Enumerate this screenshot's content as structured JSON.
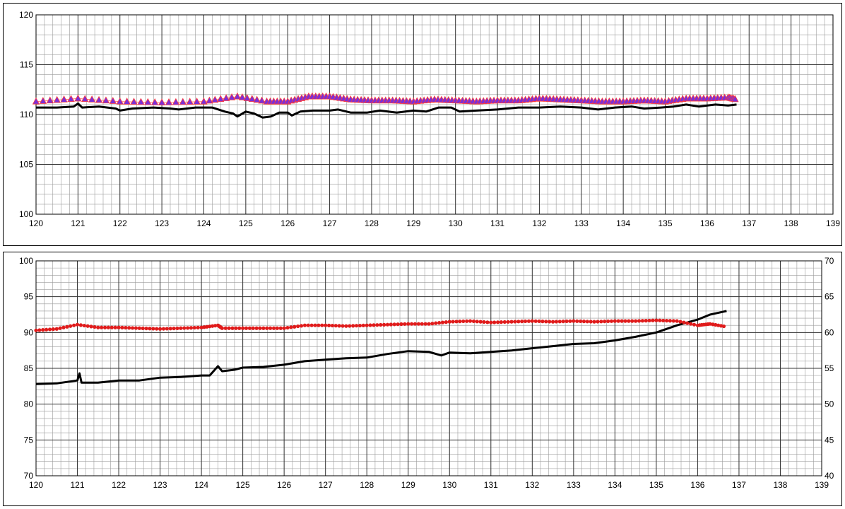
{
  "chart_data": [
    {
      "type": "line",
      "title": "",
      "xlabel": "",
      "ylabel": "",
      "xlim": [
        120,
        139
      ],
      "ylim": [
        100,
        120
      ],
      "xticks": [
        "120",
        "121",
        "122",
        "123",
        "124",
        "125",
        "126",
        "127",
        "128",
        "129",
        "130",
        "131",
        "132",
        "133",
        "134",
        "135",
        "136",
        "137",
        "138",
        "139"
      ],
      "yticks": [
        "100",
        "105",
        "110",
        "115",
        "120"
      ],
      "grid": true,
      "legend": "none",
      "colors": {
        "series_line": "#000000",
        "triangle_fill": "#7b2fd6",
        "triangle_edge": "#ff3b3b"
      },
      "series": [
        {
          "style": "line",
          "color": "#000000",
          "points": [
            [
              120.0,
              110.7
            ],
            [
              120.5,
              110.7
            ],
            [
              120.9,
              110.8
            ],
            [
              121.0,
              111.1
            ],
            [
              121.1,
              110.7
            ],
            [
              121.5,
              110.8
            ],
            [
              121.9,
              110.6
            ],
            [
              122.0,
              110.4
            ],
            [
              122.3,
              110.6
            ],
            [
              122.8,
              110.7
            ],
            [
              123.2,
              110.6
            ],
            [
              123.4,
              110.5
            ],
            [
              123.8,
              110.7
            ],
            [
              124.2,
              110.7
            ],
            [
              124.5,
              110.3
            ],
            [
              124.7,
              110.1
            ],
            [
              124.8,
              109.8
            ],
            [
              125.0,
              110.3
            ],
            [
              125.2,
              110.1
            ],
            [
              125.4,
              109.7
            ],
            [
              125.6,
              109.8
            ],
            [
              125.8,
              110.2
            ],
            [
              126.0,
              110.2
            ],
            [
              126.1,
              109.9
            ],
            [
              126.3,
              110.3
            ],
            [
              126.6,
              110.4
            ],
            [
              127.0,
              110.4
            ],
            [
              127.2,
              110.5
            ],
            [
              127.5,
              110.2
            ],
            [
              127.9,
              110.2
            ],
            [
              128.2,
              110.4
            ],
            [
              128.6,
              110.2
            ],
            [
              129.0,
              110.4
            ],
            [
              129.3,
              110.3
            ],
            [
              129.6,
              110.7
            ],
            [
              129.9,
              110.7
            ],
            [
              130.1,
              110.3
            ],
            [
              130.5,
              110.4
            ],
            [
              131.0,
              110.5
            ],
            [
              131.5,
              110.7
            ],
            [
              132.0,
              110.7
            ],
            [
              132.5,
              110.8
            ],
            [
              133.0,
              110.7
            ],
            [
              133.4,
              110.5
            ],
            [
              133.8,
              110.7
            ],
            [
              134.2,
              110.8
            ],
            [
              134.5,
              110.6
            ],
            [
              134.9,
              110.7
            ],
            [
              135.2,
              110.8
            ],
            [
              135.5,
              111.0
            ],
            [
              135.8,
              110.8
            ],
            [
              136.0,
              110.9
            ],
            [
              136.2,
              111.0
            ],
            [
              136.5,
              110.9
            ],
            [
              136.7,
              111.0
            ]
          ]
        },
        {
          "style": "triangle",
          "color": "#7b2fd6",
          "points": [
            [
              120.0,
              111.3
            ],
            [
              121.0,
              111.6
            ],
            [
              122.0,
              111.3
            ],
            [
              123.0,
              111.2
            ],
            [
              124.0,
              111.3
            ],
            [
              124.8,
              111.8
            ],
            [
              125.5,
              111.3
            ],
            [
              126.0,
              111.3
            ],
            [
              126.5,
              111.8
            ],
            [
              127.0,
              111.8
            ],
            [
              127.5,
              111.5
            ],
            [
              128.0,
              111.4
            ],
            [
              128.5,
              111.4
            ],
            [
              129.0,
              111.3
            ],
            [
              129.5,
              111.5
            ],
            [
              130.0,
              111.4
            ],
            [
              130.5,
              111.3
            ],
            [
              131.0,
              111.4
            ],
            [
              131.5,
              111.4
            ],
            [
              132.0,
              111.6
            ],
            [
              132.5,
              111.5
            ],
            [
              133.0,
              111.4
            ],
            [
              133.5,
              111.3
            ],
            [
              134.0,
              111.3
            ],
            [
              134.5,
              111.4
            ],
            [
              135.0,
              111.3
            ],
            [
              135.5,
              111.6
            ],
            [
              136.0,
              111.6
            ],
            [
              136.5,
              111.7
            ],
            [
              136.7,
              111.5
            ]
          ]
        }
      ]
    },
    {
      "type": "line",
      "title": "",
      "xlabel": "",
      "ylabel": "",
      "xlim": [
        120,
        139
      ],
      "ylim": [
        70,
        100
      ],
      "y2lim": [
        40,
        70
      ],
      "xticks": [
        "120",
        "121",
        "122",
        "123",
        "124",
        "125",
        "126",
        "127",
        "128",
        "129",
        "130",
        "131",
        "132",
        "133",
        "134",
        "135",
        "136",
        "137",
        "138",
        "139"
      ],
      "yticks": [
        "70",
        "75",
        "80",
        "85",
        "90",
        "95",
        "100"
      ],
      "y2ticks": [
        "40",
        "45",
        "50",
        "55",
        "60",
        "65",
        "70"
      ],
      "grid": true,
      "legend": "none",
      "colors": {
        "series_line": "#000000",
        "dot_fill": "#e01b1b"
      },
      "series": [
        {
          "style": "line",
          "color": "#000000",
          "points": [
            [
              120.0,
              82.8
            ],
            [
              120.5,
              82.9
            ],
            [
              121.0,
              83.3
            ],
            [
              121.05,
              84.3
            ],
            [
              121.1,
              83.0
            ],
            [
              121.5,
              83.0
            ],
            [
              122.0,
              83.3
            ],
            [
              122.5,
              83.3
            ],
            [
              123.0,
              83.7
            ],
            [
              123.5,
              83.8
            ],
            [
              124.0,
              84.0
            ],
            [
              124.2,
              84.0
            ],
            [
              124.4,
              85.3
            ],
            [
              124.5,
              84.6
            ],
            [
              124.8,
              84.8
            ],
            [
              125.0,
              85.1
            ],
            [
              125.5,
              85.2
            ],
            [
              126.0,
              85.5
            ],
            [
              126.5,
              86.0
            ],
            [
              127.0,
              86.2
            ],
            [
              127.5,
              86.4
            ],
            [
              128.0,
              86.5
            ],
            [
              128.5,
              87.0
            ],
            [
              129.0,
              87.4
            ],
            [
              129.5,
              87.3
            ],
            [
              129.8,
              86.8
            ],
            [
              130.0,
              87.2
            ],
            [
              130.5,
              87.1
            ],
            [
              131.0,
              87.3
            ],
            [
              131.5,
              87.5
            ],
            [
              132.0,
              87.8
            ],
            [
              132.5,
              88.1
            ],
            [
              133.0,
              88.4
            ],
            [
              133.5,
              88.5
            ],
            [
              134.0,
              88.9
            ],
            [
              134.5,
              89.4
            ],
            [
              135.0,
              90.0
            ],
            [
              135.5,
              91.0
            ],
            [
              136.0,
              91.8
            ],
            [
              136.3,
              92.5
            ],
            [
              136.7,
              93.0
            ]
          ]
        },
        {
          "style": "dot",
          "color": "#e01b1b",
          "points": [
            [
              120.0,
              90.3
            ],
            [
              120.5,
              90.5
            ],
            [
              121.0,
              91.1
            ],
            [
              121.5,
              90.7
            ],
            [
              122.0,
              90.7
            ],
            [
              122.5,
              90.6
            ],
            [
              123.0,
              90.5
            ],
            [
              123.5,
              90.6
            ],
            [
              124.0,
              90.7
            ],
            [
              124.4,
              91.0
            ],
            [
              124.5,
              90.6
            ],
            [
              125.0,
              90.6
            ],
            [
              125.5,
              90.6
            ],
            [
              126.0,
              90.6
            ],
            [
              126.5,
              91.0
            ],
            [
              127.0,
              91.0
            ],
            [
              127.5,
              90.9
            ],
            [
              128.0,
              91.0
            ],
            [
              128.5,
              91.1
            ],
            [
              129.0,
              91.2
            ],
            [
              129.5,
              91.2
            ],
            [
              130.0,
              91.5
            ],
            [
              130.5,
              91.6
            ],
            [
              131.0,
              91.4
            ],
            [
              131.5,
              91.5
            ],
            [
              132.0,
              91.6
            ],
            [
              132.5,
              91.5
            ],
            [
              133.0,
              91.6
            ],
            [
              133.5,
              91.5
            ],
            [
              134.0,
              91.6
            ],
            [
              134.5,
              91.6
            ],
            [
              135.0,
              91.7
            ],
            [
              135.5,
              91.6
            ],
            [
              136.0,
              91.0
            ],
            [
              136.3,
              91.2
            ],
            [
              136.7,
              90.8
            ]
          ]
        }
      ]
    }
  ]
}
